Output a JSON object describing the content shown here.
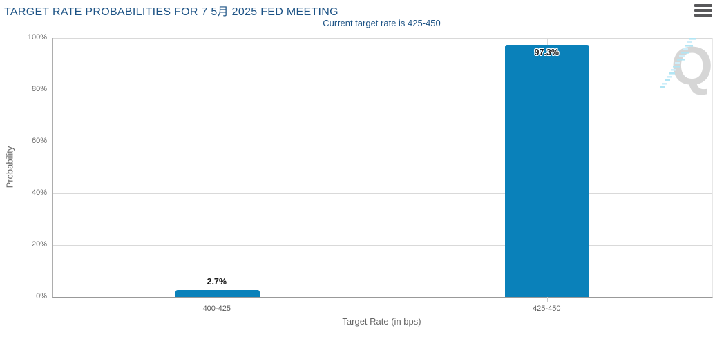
{
  "header": {
    "title": "TARGET RATE PROBABILITIES FOR 7 5月 2025 FED MEETING",
    "subtitle": "Current target rate is 425-450"
  },
  "watermark": {
    "letter": "Q"
  },
  "colors": {
    "title_text": "#1d5385",
    "bar": "#0a81ba",
    "gridline": "#d9d9d9",
    "axis_line": "#999999",
    "axis_text": "#666666",
    "watermark_gray": "#d6d6d6",
    "watermark_blue": "#b2e5f4"
  },
  "chart_data": {
    "type": "bar",
    "title": "TARGET RATE PROBABILITIES FOR 7 5月 2025 FED MEETING",
    "subtitle": "Current target rate is 425-450",
    "categories": [
      "400-425",
      "425-450"
    ],
    "values": [
      2.7,
      97.3
    ],
    "value_labels": [
      "2.7%",
      "97.3%"
    ],
    "xlabel": "Target Rate (in bps)",
    "ylabel": "Probability",
    "ylim": [
      0,
      100
    ],
    "yticks": [
      "0%",
      "20%",
      "40%",
      "60%",
      "80%",
      "100%"
    ],
    "grid": true,
    "legend": false
  }
}
